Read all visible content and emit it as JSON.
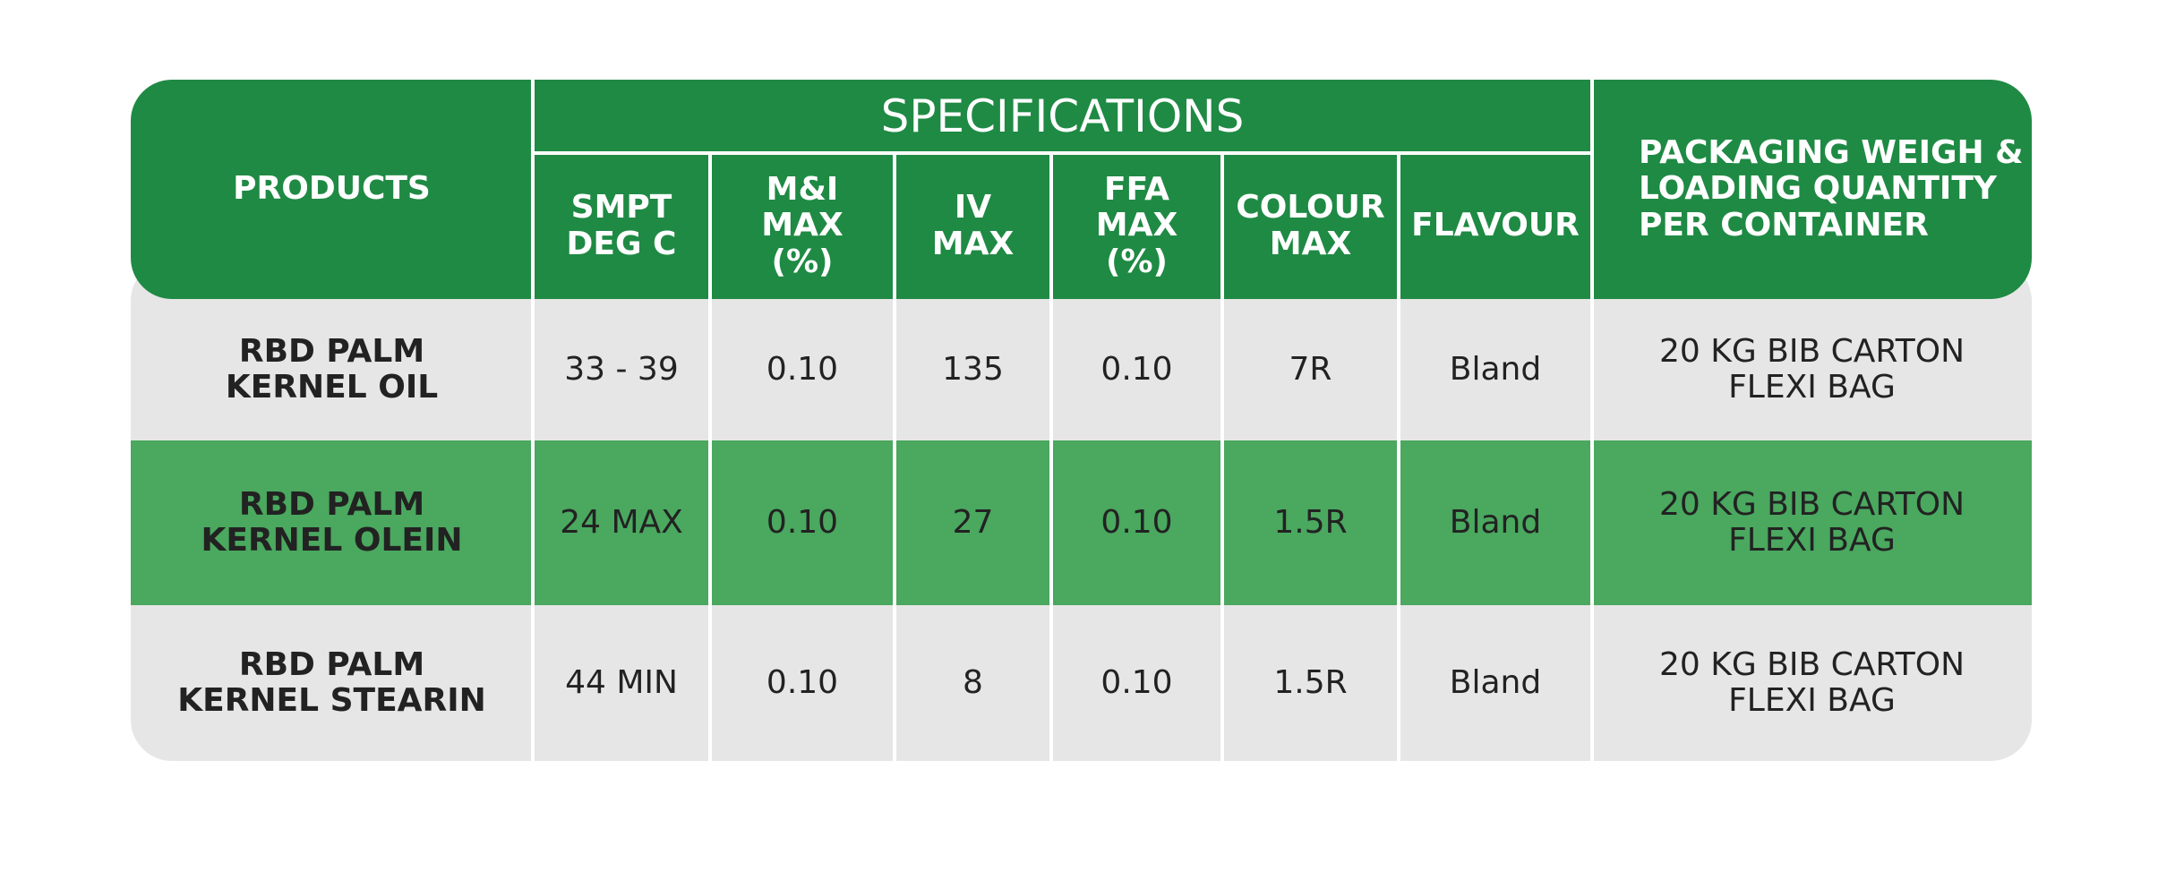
{
  "header": {
    "products": "PRODUCTS",
    "specifications": "SPECIFICATIONS",
    "columns": [
      "SMPT\nDEG C",
      "M&I\nMAX\n(%)",
      "IV\nMAX",
      "FFA\nMAX\n(%)",
      "COLOUR\nMAX",
      "FLAVOUR"
    ],
    "packaging": "PACKAGING WEIGH &\nLOADING QUANTITY\nPER CONTAINER"
  },
  "table": {
    "rows": [
      [
        "RBD PALM\nKERNEL OIL",
        "33 - 39",
        "0.10",
        "135",
        "0.10",
        "7R",
        "Bland",
        "20 KG BIB CARTON\nFLEXI BAG"
      ],
      [
        "RBD PALM\nKERNEL OLEIN",
        "24 MAX",
        "0.10",
        "27",
        "0.10",
        "1.5R",
        "Bland",
        "20 KG BIB CARTON\nFLEXI BAG"
      ],
      [
        "RBD PALM\nKERNEL STEARIN",
        "44 MIN",
        "0.10",
        "8",
        "0.10",
        "1.5R",
        "Bland",
        "20 KG BIB CARTON\nFLEXI BAG"
      ]
    ]
  }
}
